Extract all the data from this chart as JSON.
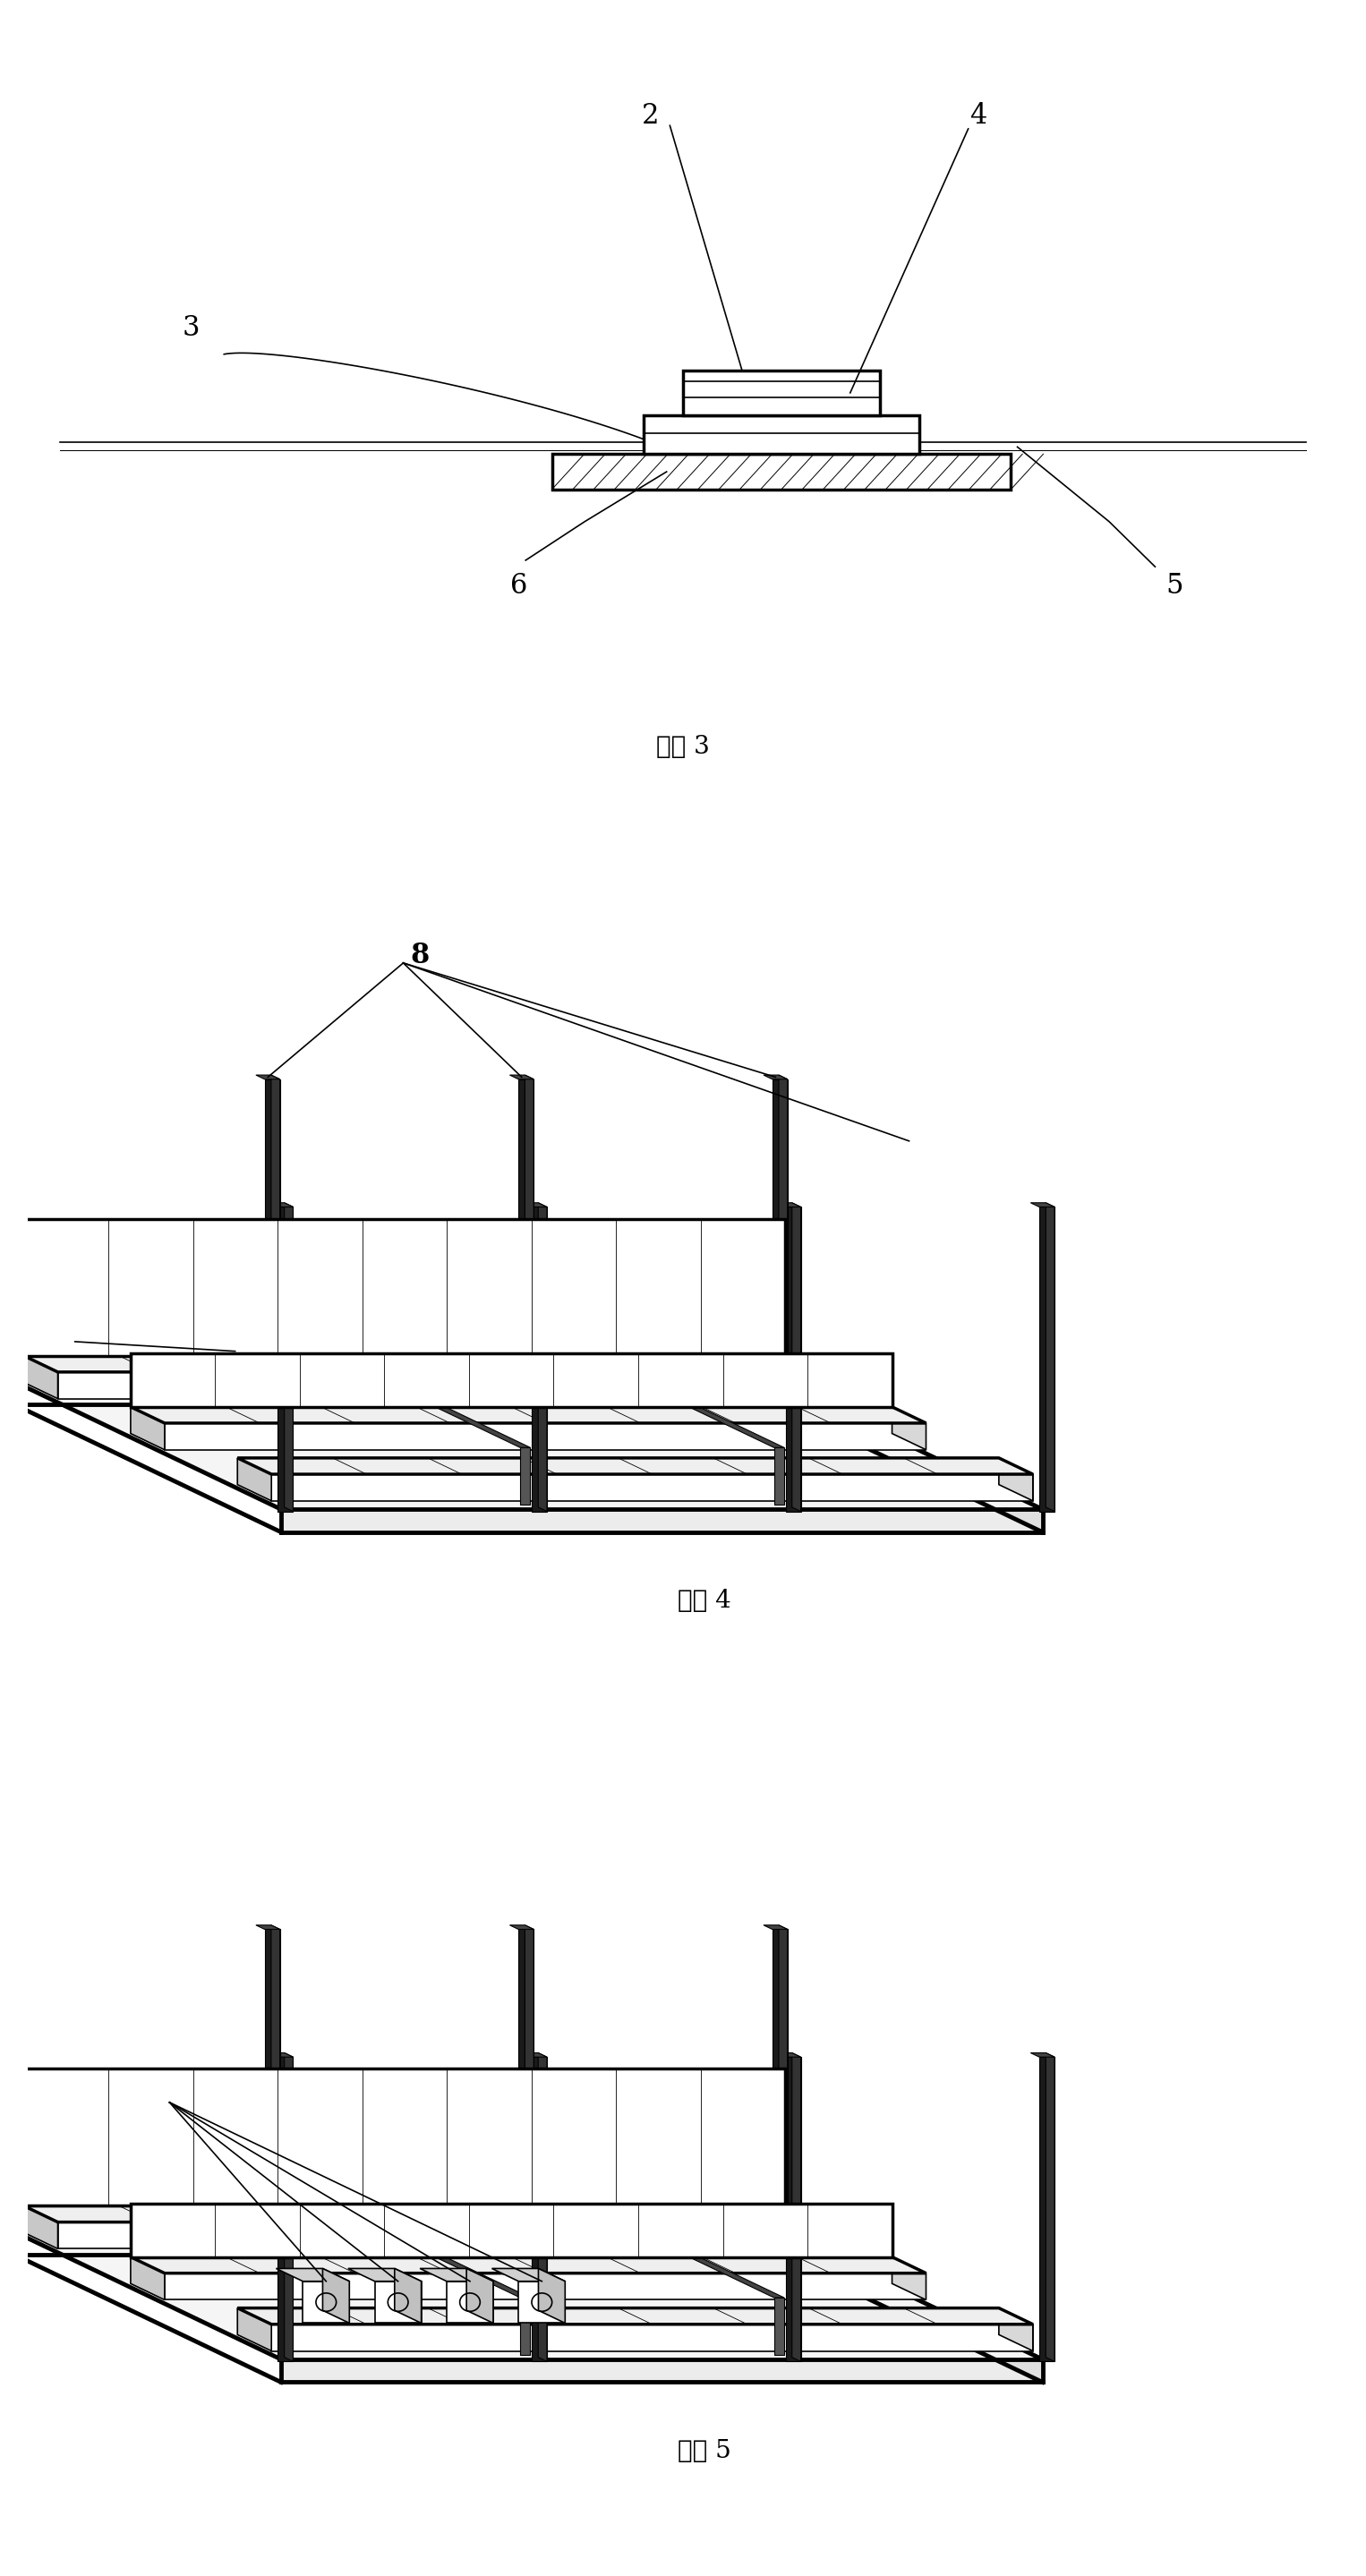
{
  "fig_width": 15.26,
  "fig_height": 28.78,
  "bg_color": "#ffffff",
  "line_color": "#000000",
  "fig3_caption": "附图 3",
  "fig4_caption": "附图 4",
  "fig5_caption": "附图 5",
  "caption_fontsize": 20,
  "label_fontsize": 22,
  "label_color": "#000000",
  "lw_main": 2.5,
  "lw_thin": 1.2,
  "lw_thick": 3.5
}
